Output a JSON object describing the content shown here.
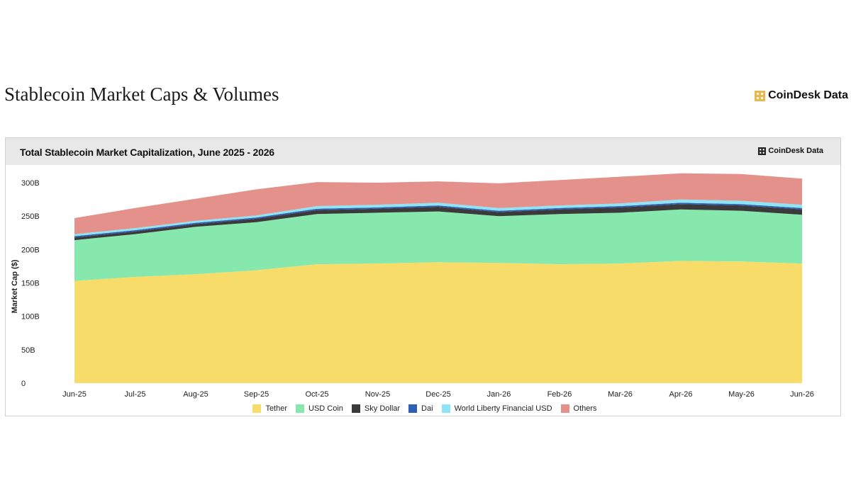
{
  "page": {
    "title": "Stablecoin Market Caps & Volumes",
    "brand": "CoinDesk Data"
  },
  "card": {
    "title": "Total Stablecoin Market Capitalization, June 2025 - 2026",
    "brand": "CoinDesk Data"
  },
  "colors": {
    "Tether": "#f7dc6a",
    "USD Coin": "#86e8ac",
    "Sky Dollar": "#3a3a3a",
    "Dai": "#2f5fb3",
    "World Liberty Financial USD": "#8ee3f5",
    "Others": "#e4918b",
    "brand_icon": "#e9b84a"
  },
  "chart_data": {
    "type": "area",
    "stacked": true,
    "title": "Total Stablecoin Market Capitalization, June 2025 - 2026",
    "ylabel": "Market Cap ($)",
    "xlabel": "",
    "ylim": [
      0,
      300
    ],
    "y_unit": "B",
    "yticks": [
      "0",
      "50B",
      "100B",
      "150B",
      "200B",
      "250B",
      "300B"
    ],
    "categories": [
      "Jun-25",
      "Jul-25",
      "Aug-25",
      "Sep-25",
      "Oct-25",
      "Nov-25",
      "Dec-25",
      "Jan-26",
      "Feb-26",
      "Mar-26",
      "Apr-26",
      "May-26",
      "Jun-26"
    ],
    "grid": false,
    "legend_position": "bottom",
    "series": [
      {
        "name": "Tether",
        "values": [
          153,
          159,
          163,
          169,
          178,
          179,
          181,
          180,
          178,
          179,
          183,
          182,
          179
        ]
      },
      {
        "name": "USD Coin",
        "values": [
          61,
          64,
          71,
          72,
          75,
          76,
          76,
          70,
          75,
          76,
          77,
          76,
          73
        ]
      },
      {
        "name": "Sky Dollar",
        "values": [
          4,
          4,
          4,
          5,
          6,
          6,
          7,
          6,
          7,
          8,
          8,
          8,
          8
        ]
      },
      {
        "name": "Dai",
        "values": [
          2,
          2,
          2,
          2,
          2,
          2,
          2,
          2,
          2,
          2,
          2,
          2,
          2
        ]
      },
      {
        "name": "World Liberty Financial USD",
        "values": [
          3,
          3,
          3,
          3,
          4,
          4,
          4,
          4,
          4,
          4,
          5,
          5,
          5
        ]
      },
      {
        "name": "Others",
        "values": [
          24,
          30,
          33,
          39,
          36,
          33,
          32,
          37,
          38,
          40,
          39,
          40,
          39
        ]
      }
    ]
  }
}
